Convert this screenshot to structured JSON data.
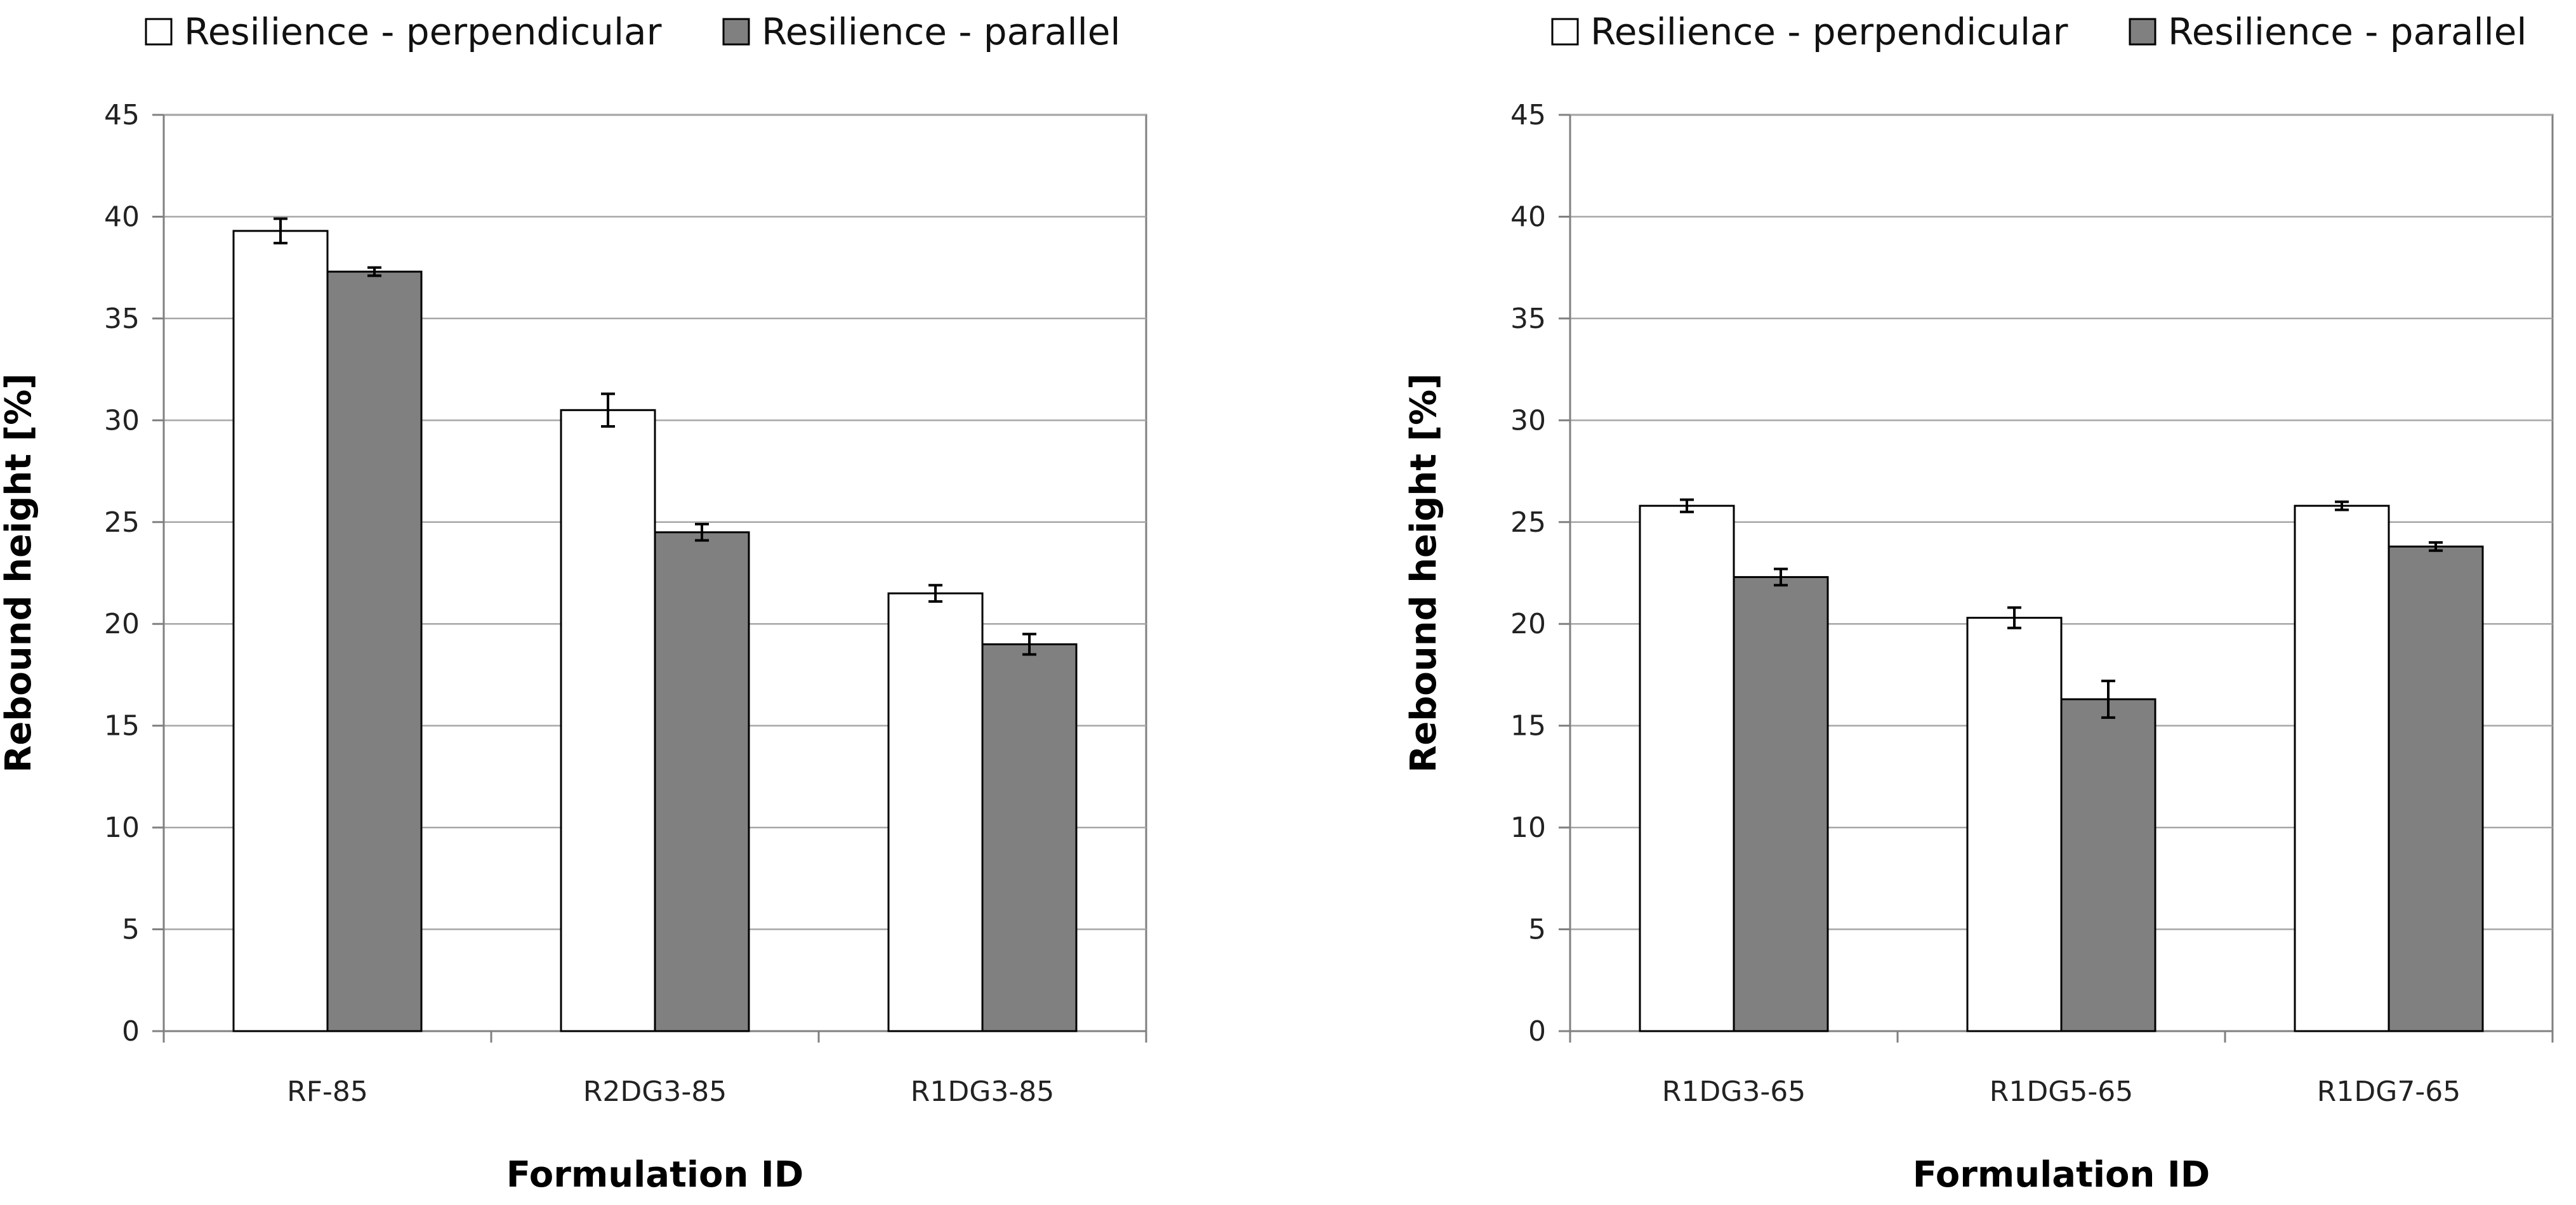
{
  "colors": {
    "perpendicular": "#ffffff",
    "parallel": "#808080",
    "bar_stroke": "#000000",
    "grid": "#a6a6a6",
    "axis": "#808080"
  },
  "chart_data": [
    {
      "type": "bar",
      "title": "",
      "xlabel": "Formulation ID",
      "ylabel": "Rebound height [%]",
      "ylim": [
        0,
        45
      ],
      "yticks": [
        0,
        5,
        10,
        15,
        20,
        25,
        30,
        35,
        40,
        45
      ],
      "grid": true,
      "legend_position": "top",
      "categories": [
        "RF-85",
        "R2DG3-85",
        "R1DG3-85"
      ],
      "series": [
        {
          "name": "Resilience - perpendicular",
          "values": [
            39.3,
            30.5,
            21.5
          ],
          "errors": [
            0.6,
            0.8,
            0.4
          ]
        },
        {
          "name": "Resilience - parallel",
          "values": [
            37.3,
            24.5,
            19.0
          ],
          "errors": [
            0.2,
            0.4,
            0.5
          ]
        }
      ]
    },
    {
      "type": "bar",
      "title": "",
      "xlabel": "Formulation ID",
      "ylabel": "Rebound height [%]",
      "ylim": [
        0,
        45
      ],
      "yticks": [
        0,
        5,
        10,
        15,
        20,
        25,
        30,
        35,
        40,
        45
      ],
      "grid": true,
      "legend_position": "top",
      "categories": [
        "R1DG3-65",
        "R1DG5-65",
        "R1DG7-65"
      ],
      "series": [
        {
          "name": "Resilience - perpendicular",
          "values": [
            25.8,
            20.3,
            25.8
          ],
          "errors": [
            0.3,
            0.5,
            0.2
          ]
        },
        {
          "name": "Resilience - parallel",
          "values": [
            22.3,
            16.3,
            23.8
          ],
          "errors": [
            0.4,
            0.9,
            0.2
          ]
        }
      ]
    }
  ]
}
